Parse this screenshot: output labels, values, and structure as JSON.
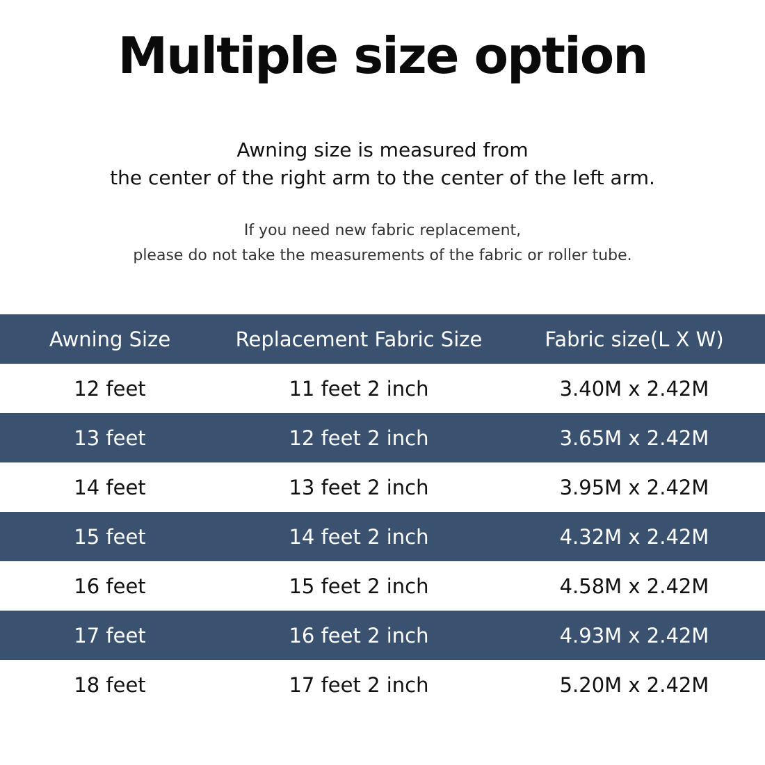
{
  "title": "Multiple size option",
  "subtitle": [
    "Awning  size is measured from",
    "the center of the right arm to the center of the left arm."
  ],
  "note": [
    "If you need new fabric replacement,",
    "please do not take the measurements of the fabric or roller tube."
  ],
  "colors": {
    "band": "#3a5270"
  },
  "table": {
    "headers": [
      "Awning Size",
      "Replacement Fabric Size",
      "Fabric size(L X W)"
    ],
    "rows": [
      [
        "12 feet",
        "11 feet 2 inch",
        "3.40M x 2.42M"
      ],
      [
        "13 feet",
        "12 feet 2 inch",
        "3.65M x 2.42M"
      ],
      [
        "14 feet",
        "13 feet 2 inch",
        "3.95M x 2.42M"
      ],
      [
        "15 feet",
        "14 feet 2 inch",
        "4.32M x 2.42M"
      ],
      [
        "16 feet",
        "15 feet 2 inch",
        "4.58M x 2.42M"
      ],
      [
        "17 feet",
        "16 feet 2 inch",
        "4.93M x 2.42M"
      ],
      [
        "18 feet",
        "17 feet 2 inch",
        "5.20M x 2.42M"
      ]
    ]
  }
}
